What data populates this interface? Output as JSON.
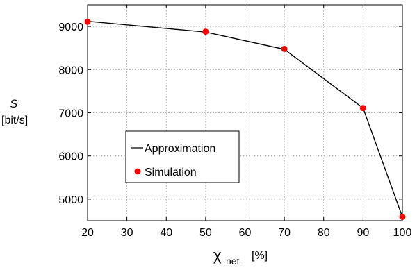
{
  "chart_data": {
    "type": "line",
    "ylabel": {
      "symbol": "S",
      "unit": "[bit/s]"
    },
    "xlabel": {
      "symbol": "χ",
      "subscript": "net",
      "unit": "[%]"
    },
    "xlim": [
      20,
      100
    ],
    "ylim": [
      4500,
      9500
    ],
    "xticks": [
      20,
      30,
      40,
      50,
      60,
      70,
      80,
      90,
      100
    ],
    "yticks": [
      5000,
      6000,
      7000,
      8000,
      9000
    ],
    "grid": true,
    "legend_position": "center-left",
    "series": [
      {
        "name": "Approximation",
        "style": "line",
        "color": "#000000",
        "x": [
          20,
          50,
          70,
          90,
          100
        ],
        "y": [
          9120,
          8870,
          8470,
          7110,
          4590
        ]
      },
      {
        "name": "Simulation",
        "style": "marker",
        "color": "#ff0000",
        "x": [
          20,
          50,
          70,
          90,
          100
        ],
        "y": [
          9110,
          8880,
          8480,
          7110,
          4590
        ]
      }
    ]
  }
}
